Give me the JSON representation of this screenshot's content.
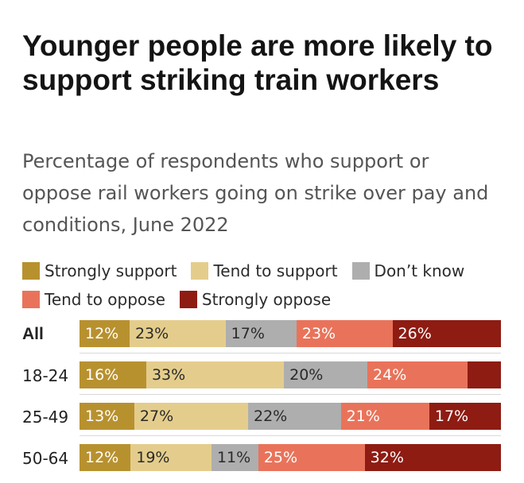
{
  "title": "Younger people are more likely to support striking train workers",
  "subtitle": "Percentage of respondents who support or oppose rail workers going on strike over pay and conditions, June 2022",
  "legend": [
    {
      "label": "Strongly support",
      "color": "#b8912f"
    },
    {
      "label": "Tend to support",
      "color": "#e4cd8c"
    },
    {
      "label": "Don’t know",
      "color": "#aeaeae"
    },
    {
      "label": "Tend to oppose",
      "color": "#e9735a"
    },
    {
      "label": "Strongly oppose",
      "color": "#8e1c13"
    }
  ],
  "chart_data": {
    "type": "bar",
    "orientation": "horizontal",
    "stacked": true,
    "title": "Younger people are more likely to support striking train workers",
    "subtitle": "Percentage of respondents who support or oppose rail workers going on strike over pay and conditions, June 2022",
    "categories": [
      "All",
      "18-24",
      "25-49",
      "50-64"
    ],
    "series": [
      {
        "name": "Strongly support",
        "color": "#b8912f",
        "values": [
          12,
          16,
          13,
          12
        ],
        "labels": [
          "12%",
          "16%",
          "13%",
          "12%"
        ]
      },
      {
        "name": "Tend to support",
        "color": "#e4cd8c",
        "values": [
          23,
          33,
          27,
          19
        ],
        "labels": [
          "23%",
          "33%",
          "27%",
          "19%"
        ]
      },
      {
        "name": "Don’t know",
        "color": "#aeaeae",
        "values": [
          17,
          20,
          22,
          11
        ],
        "labels": [
          "17%",
          "20%",
          "22%",
          "11%"
        ]
      },
      {
        "name": "Tend to oppose",
        "color": "#e9735a",
        "values": [
          23,
          24,
          21,
          25
        ],
        "labels": [
          "23%",
          "24%",
          "21%",
          "25%"
        ]
      },
      {
        "name": "Strongly oppose",
        "color": "#8e1c13",
        "values": [
          26,
          8,
          17,
          32
        ],
        "labels": [
          "26%",
          "",
          "17%",
          "32%"
        ]
      }
    ],
    "label_colors": {
      "Strongly support": "#ffffff",
      "Tend to support": "#2a2a2a",
      "Don’t know": "#2a2a2a",
      "Tend to oppose": "#ffffff",
      "Strongly oppose": "#ffffff"
    },
    "legend_position": "top-left"
  }
}
